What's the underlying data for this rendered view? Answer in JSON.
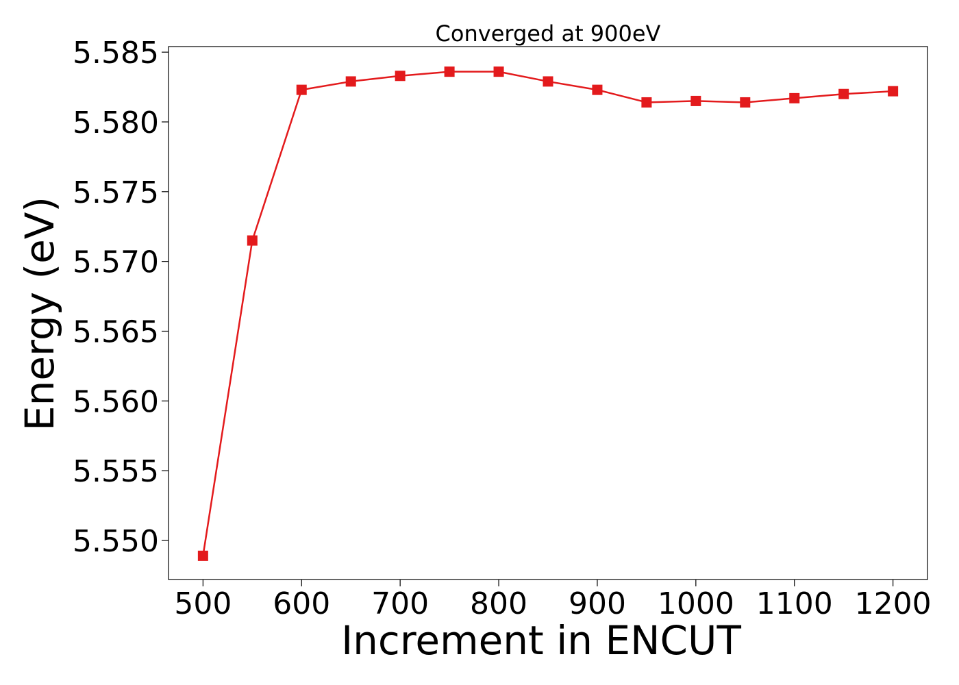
{
  "chart_data": {
    "type": "line",
    "title": "Converged at 900eV",
    "xlabel": "Increment in ENCUT",
    "ylabel": "Energy (eV)",
    "x": [
      500,
      550,
      600,
      650,
      700,
      750,
      800,
      850,
      900,
      950,
      1000,
      1050,
      1100,
      1150,
      1200
    ],
    "series": [
      {
        "values": [
          5.5489,
          5.5715,
          5.5823,
          5.5829,
          5.5833,
          5.5836,
          5.5836,
          5.5829,
          5.5823,
          5.5814,
          5.5815,
          5.5814,
          5.5817,
          5.582,
          5.5822
        ],
        "color": "#e31a1c",
        "marker": "square"
      }
    ],
    "xlim": [
      465,
      1235
    ],
    "ylim": [
      5.5472,
      5.5854
    ],
    "xticks": [
      500,
      600,
      700,
      800,
      900,
      1000,
      1100,
      1200
    ],
    "xtick_labels": [
      "500",
      "600",
      "700",
      "800",
      "900",
      "1000",
      "1100",
      "1200"
    ],
    "yticks": [
      5.55,
      5.555,
      5.56,
      5.565,
      5.57,
      5.575,
      5.58,
      5.585
    ],
    "ytick_labels": [
      "5.550",
      "5.555",
      "5.560",
      "5.565",
      "5.570",
      "5.575",
      "5.580",
      "5.585"
    ],
    "grid": false,
    "legend": "none"
  }
}
